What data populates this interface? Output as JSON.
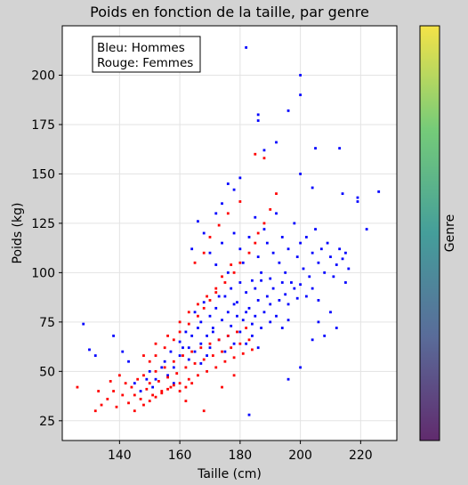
{
  "chart_data": {
    "type": "scatter",
    "title": "Poids en fonction de la taille, par genre",
    "xlabel": "Taille (cm)",
    "ylabel": "Poids (kg)",
    "xlim": [
      121,
      232
    ],
    "ylim": [
      15,
      225
    ],
    "xticks": [
      140,
      160,
      180,
      200,
      220
    ],
    "yticks": [
      25,
      50,
      75,
      100,
      125,
      150,
      175,
      200
    ],
    "grid": true,
    "annotation_lines": [
      "Bleu: Hommes",
      "Rouge: Femmes"
    ],
    "annotation_position": "top-left",
    "colorbar": {
      "label": "Genre",
      "colormap": "viridis",
      "colors": [
        "#fde725",
        "#5ec962",
        "#21918c",
        "#3b528b",
        "#440154"
      ]
    },
    "series": [
      {
        "color": "#0000ff",
        "points": [
          [
            182,
            214
          ],
          [
            200,
            200
          ],
          [
            200,
            190
          ],
          [
            196,
            182
          ],
          [
            186,
            180
          ],
          [
            186,
            177
          ],
          [
            176,
            145
          ],
          [
            205,
            163
          ],
          [
            213,
            163
          ],
          [
            214,
            140
          ],
          [
            219,
            138
          ],
          [
            219,
            136
          ],
          [
            226,
            141
          ],
          [
            222,
            122
          ],
          [
            200,
            150
          ],
          [
            204,
            143
          ],
          [
            188,
            162
          ],
          [
            192,
            166
          ],
          [
            170,
            110
          ],
          [
            172,
            104
          ],
          [
            174,
            115
          ],
          [
            176,
            100
          ],
          [
            178,
            120
          ],
          [
            180,
            112
          ],
          [
            181,
            105
          ],
          [
            183,
            118
          ],
          [
            184,
            96
          ],
          [
            185,
            128
          ],
          [
            186,
            108
          ],
          [
            187,
            100
          ],
          [
            188,
            122
          ],
          [
            189,
            115
          ],
          [
            190,
            97
          ],
          [
            191,
            110
          ],
          [
            192,
            130
          ],
          [
            193,
            105
          ],
          [
            194,
            118
          ],
          [
            195,
            100
          ],
          [
            196,
            112
          ],
          [
            197,
            95
          ],
          [
            198,
            125
          ],
          [
            199,
            108
          ],
          [
            200,
            115
          ],
          [
            201,
            102
          ],
          [
            202,
            118
          ],
          [
            203,
            98
          ],
          [
            204,
            110
          ],
          [
            205,
            122
          ],
          [
            206,
            105
          ],
          [
            207,
            112
          ],
          [
            208,
            100
          ],
          [
            209,
            115
          ],
          [
            210,
            108
          ],
          [
            211,
            98
          ],
          [
            212,
            104
          ],
          [
            213,
            112
          ],
          [
            214,
            107
          ],
          [
            215,
            95
          ],
          [
            216,
            102
          ],
          [
            175,
            88
          ],
          [
            177,
            92
          ],
          [
            179,
            85
          ],
          [
            180,
            95
          ],
          [
            182,
            90
          ],
          [
            183,
            82
          ],
          [
            185,
            92
          ],
          [
            186,
            86
          ],
          [
            187,
            96
          ],
          [
            189,
            88
          ],
          [
            190,
            84
          ],
          [
            191,
            92
          ],
          [
            193,
            86
          ],
          [
            194,
            95
          ],
          [
            195,
            89
          ],
          [
            196,
            84
          ],
          [
            198,
            92
          ],
          [
            199,
            87
          ],
          [
            200,
            94
          ],
          [
            202,
            88
          ],
          [
            204,
            92
          ],
          [
            206,
            86
          ],
          [
            165,
            80
          ],
          [
            167,
            75
          ],
          [
            168,
            85
          ],
          [
            170,
            78
          ],
          [
            171,
            72
          ],
          [
            172,
            82
          ],
          [
            173,
            88
          ],
          [
            174,
            76
          ],
          [
            176,
            80
          ],
          [
            177,
            73
          ],
          [
            178,
            84
          ],
          [
            179,
            78
          ],
          [
            181,
            76
          ],
          [
            182,
            80
          ],
          [
            184,
            74
          ],
          [
            185,
            78
          ],
          [
            187,
            72
          ],
          [
            188,
            80
          ],
          [
            190,
            75
          ],
          [
            192,
            78
          ],
          [
            194,
            72
          ],
          [
            196,
            76
          ],
          [
            160,
            65
          ],
          [
            162,
            70
          ],
          [
            163,
            62
          ],
          [
            164,
            68
          ],
          [
            166,
            72
          ],
          [
            167,
            64
          ],
          [
            169,
            68
          ],
          [
            170,
            62
          ],
          [
            171,
            70
          ],
          [
            173,
            66
          ],
          [
            175,
            60
          ],
          [
            176,
            68
          ],
          [
            178,
            64
          ],
          [
            180,
            70
          ],
          [
            182,
            64
          ],
          [
            184,
            68
          ],
          [
            186,
            62
          ],
          [
            155,
            55
          ],
          [
            157,
            60
          ],
          [
            158,
            52
          ],
          [
            160,
            58
          ],
          [
            161,
            62
          ],
          [
            163,
            56
          ],
          [
            165,
            60
          ],
          [
            167,
            54
          ],
          [
            169,
            58
          ],
          [
            150,
            50
          ],
          [
            152,
            46
          ],
          [
            154,
            52
          ],
          [
            156,
            48
          ],
          [
            158,
            44
          ],
          [
            145,
            44
          ],
          [
            147,
            40
          ],
          [
            149,
            46
          ],
          [
            151,
            42
          ],
          [
            128,
            74
          ],
          [
            130,
            61
          ],
          [
            132,
            58
          ],
          [
            138,
            68
          ],
          [
            141,
            60
          ],
          [
            143,
            55
          ],
          [
            168,
            120
          ],
          [
            172,
            130
          ],
          [
            174,
            135
          ],
          [
            178,
            142
          ],
          [
            180,
            148
          ],
          [
            164,
            112
          ],
          [
            166,
            126
          ],
          [
            206,
            75
          ],
          [
            208,
            68
          ],
          [
            204,
            66
          ],
          [
            210,
            80
          ],
          [
            212,
            72
          ],
          [
            200,
            52
          ],
          [
            196,
            46
          ],
          [
            183,
            28
          ],
          [
            215,
            110
          ]
        ]
      },
      {
        "color": "#ff0000",
        "points": [
          [
            126,
            42
          ],
          [
            132,
            30
          ],
          [
            134,
            33
          ],
          [
            136,
            36
          ],
          [
            138,
            40
          ],
          [
            139,
            32
          ],
          [
            141,
            38
          ],
          [
            142,
            44
          ],
          [
            143,
            34
          ],
          [
            144,
            42
          ],
          [
            145,
            38
          ],
          [
            146,
            46
          ],
          [
            147,
            36
          ],
          [
            148,
            48
          ],
          [
            149,
            41
          ],
          [
            150,
            44
          ],
          [
            151,
            38
          ],
          [
            152,
            50
          ],
          [
            153,
            45
          ],
          [
            154,
            40
          ],
          [
            155,
            52
          ],
          [
            156,
            47
          ],
          [
            157,
            42
          ],
          [
            158,
            55
          ],
          [
            159,
            49
          ],
          [
            160,
            44
          ],
          [
            161,
            58
          ],
          [
            162,
            52
          ],
          [
            163,
            46
          ],
          [
            164,
            60
          ],
          [
            165,
            54
          ],
          [
            166,
            48
          ],
          [
            167,
            62
          ],
          [
            168,
            56
          ],
          [
            169,
            50
          ],
          [
            170,
            64
          ],
          [
            171,
            58
          ],
          [
            172,
            52
          ],
          [
            173,
            66
          ],
          [
            174,
            60
          ],
          [
            175,
            55
          ],
          [
            176,
            68
          ],
          [
            177,
            62
          ],
          [
            178,
            57
          ],
          [
            179,
            70
          ],
          [
            180,
            64
          ],
          [
            181,
            59
          ],
          [
            182,
            72
          ],
          [
            183,
            66
          ],
          [
            184,
            61
          ],
          [
            145,
            30
          ],
          [
            148,
            33
          ],
          [
            150,
            35
          ],
          [
            152,
            37
          ],
          [
            154,
            39
          ],
          [
            156,
            41
          ],
          [
            158,
            43
          ],
          [
            160,
            40
          ],
          [
            162,
            42
          ],
          [
            164,
            44
          ],
          [
            150,
            55
          ],
          [
            152,
            58
          ],
          [
            155,
            62
          ],
          [
            158,
            66
          ],
          [
            160,
            70
          ],
          [
            163,
            74
          ],
          [
            166,
            78
          ],
          [
            168,
            82
          ],
          [
            170,
            86
          ],
          [
            172,
            90
          ],
          [
            175,
            95
          ],
          [
            178,
            100
          ],
          [
            180,
            105
          ],
          [
            183,
            110
          ],
          [
            185,
            115
          ],
          [
            156,
            68
          ],
          [
            160,
            75
          ],
          [
            163,
            80
          ],
          [
            166,
            84
          ],
          [
            169,
            88
          ],
          [
            172,
            92
          ],
          [
            174,
            98
          ],
          [
            177,
            104
          ],
          [
            186,
            120
          ],
          [
            188,
            125
          ],
          [
            190,
            132
          ],
          [
            192,
            140
          ],
          [
            165,
            105
          ],
          [
            168,
            110
          ],
          [
            170,
            118
          ],
          [
            173,
            124
          ],
          [
            176,
            130
          ],
          [
            180,
            136
          ],
          [
            185,
            160
          ],
          [
            188,
            158
          ],
          [
            162,
            35
          ],
          [
            168,
            30
          ],
          [
            174,
            42
          ],
          [
            178,
            48
          ],
          [
            148,
            58
          ],
          [
            152,
            64
          ],
          [
            140,
            48
          ],
          [
            137,
            45
          ],
          [
            133,
            40
          ]
        ]
      }
    ]
  }
}
